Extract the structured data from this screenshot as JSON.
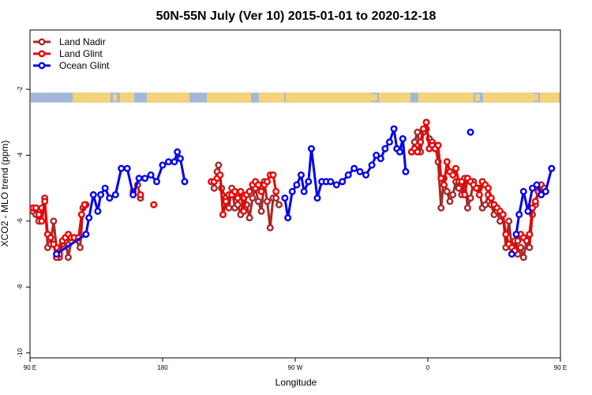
{
  "chart_data": {
    "type": "line",
    "title": "50N-55N July (Ver 10)   2015-01-01 to 2020-12-18",
    "xlabel": "Longitude",
    "ylabel": "XCO2 - MLO trend (ppm)",
    "xlim": [
      90,
      450
    ],
    "ylim": [
      -10.15,
      -0.2
    ],
    "x_ticks": [
      {
        "value": 90,
        "label": "90 E"
      },
      {
        "value": 180,
        "label": "180"
      },
      {
        "value": 270,
        "label": "90 W"
      },
      {
        "value": 360,
        "label": "0"
      },
      {
        "value": 450,
        "label": "90 E"
      },
      {
        "value": 540,
        "label": "180"
      }
    ],
    "y_ticks": [
      {
        "value": -2,
        "label": "-2"
      },
      {
        "value": -4,
        "label": "-4"
      },
      {
        "value": -6,
        "label": "-6"
      },
      {
        "value": -8,
        "label": "-8"
      },
      {
        "value": -10,
        "label": "-10"
      }
    ],
    "grid": false,
    "legend_position": "top-left",
    "map_strip": {
      "y_top": -2.1,
      "y_bottom": -2.4,
      "ocean_color": "#a3b8d9",
      "land_color": "#f5d37a"
    },
    "series": [
      {
        "name": "Land Nadir",
        "color": "#a52a2a",
        "segments": [
          [
            [
              92,
              -5.7
            ],
            [
              94,
              -5.8
            ],
            [
              96,
              -6.0
            ],
            [
              98,
              -5.6
            ],
            [
              100,
              -5.3
            ],
            [
              102,
              -6.8
            ],
            [
              104,
              -6.7
            ],
            [
              106,
              -6.0
            ],
            [
              108,
              -6.8
            ],
            [
              110,
              -7.1
            ],
            [
              112,
              -6.7
            ],
            [
              114,
              -6.6
            ],
            [
              116,
              -7.1
            ],
            [
              118,
              -6.6
            ],
            [
              120,
              -6.5
            ],
            [
              124,
              -6.8
            ],
            [
              126,
              -5.6
            ],
            [
              128,
              -5.5
            ]
          ],
          [
            [
              160,
              -5.1
            ],
            [
              163,
              -4.9
            ],
            [
              165,
              -5.3
            ]
          ],
          [
            [
              215,
              -5.0
            ],
            [
              217,
              -4.5
            ],
            [
              218,
              -4.3
            ],
            [
              220,
              -5.0
            ],
            [
              223,
              -5.3
            ],
            [
              225,
              -5.6
            ],
            [
              227,
              -5.0
            ],
            [
              229,
              -5.6
            ],
            [
              231,
              -5.5
            ],
            [
              233,
              -5.8
            ],
            [
              235,
              -5.3
            ],
            [
              237,
              -5.5
            ],
            [
              239,
              -5.9
            ],
            [
              241,
              -5.3
            ],
            [
              243,
              -5.0
            ],
            [
              245,
              -5.4
            ],
            [
              247,
              -5.7
            ],
            [
              249,
              -4.8
            ],
            [
              251,
              -5.4
            ],
            [
              253,
              -6.2
            ],
            [
              255,
              -5.3
            ],
            [
              257,
              -5.3
            ],
            [
              259,
              -5.5
            ]
          ],
          [
            [
              349,
              -3.9
            ],
            [
              351,
              -3.6
            ],
            [
              353,
              -3.3
            ],
            [
              355,
              -3.9
            ],
            [
              357,
              -3.3
            ],
            [
              359,
              -3.2
            ],
            [
              361,
              -3.5
            ],
            [
              363,
              -3.6
            ],
            [
              365,
              -3.7
            ],
            [
              367,
              -4.2
            ],
            [
              369,
              -5.6
            ],
            [
              371,
              -4.7
            ],
            [
              373,
              -5.1
            ],
            [
              375,
              -5.4
            ],
            [
              377,
              -5.2
            ],
            [
              379,
              -4.8
            ],
            [
              381,
              -5.0
            ],
            [
              383,
              -5.2
            ],
            [
              385,
              -4.7
            ],
            [
              387,
              -5.6
            ],
            [
              389,
              -5.3
            ],
            [
              391,
              -4.8
            ],
            [
              393,
              -5.0
            ],
            [
              395,
              -5.0
            ],
            [
              397,
              -5.6
            ],
            [
              399,
              -5.5
            ],
            [
              401,
              -5.2
            ],
            [
              403,
              -5.5
            ],
            [
              405,
              -5.8
            ],
            [
              407,
              -5.7
            ],
            [
              409,
              -6.0
            ],
            [
              411,
              -5.8
            ],
            [
              413,
              -6.8
            ],
            [
              415,
              -6.0
            ],
            [
              417,
              -6.8
            ],
            [
              419,
              -6.6
            ],
            [
              421,
              -7.0
            ],
            [
              423,
              -6.8
            ],
            [
              425,
              -7.1
            ],
            [
              427,
              -6.6
            ],
            [
              429,
              -6.8
            ],
            [
              431,
              -5.8
            ],
            [
              433,
              -5.5
            ],
            [
              435,
              -5.1
            ],
            [
              437,
              -4.9
            ],
            [
              439,
              -5.1
            ]
          ]
        ]
      },
      {
        "name": "Land Glint",
        "color": "#ee0000",
        "segments": [
          [
            [
              92,
              -5.6
            ],
            [
              94,
              -5.6
            ],
            [
              96,
              -5.8
            ],
            [
              98,
              -6.0
            ],
            [
              100,
              -5.4
            ],
            [
              102,
              -6.4
            ],
            [
              104,
              -6.5
            ],
            [
              106,
              -6.7
            ],
            [
              108,
              -7.1
            ],
            [
              110,
              -7.0
            ],
            [
              112,
              -6.6
            ],
            [
              114,
              -6.5
            ],
            [
              116,
              -6.4
            ],
            [
              118,
              -6.5
            ],
            [
              120,
              -6.5
            ],
            [
              123,
              -6.5
            ],
            [
              125,
              -5.8
            ],
            [
              127,
              -5.5
            ]
          ],
          [
            [
              165,
              -5.2
            ]
          ],
          [
            [
              174,
              -5.5
            ]
          ],
          [
            [
              213,
              -4.8
            ],
            [
              215,
              -4.8
            ],
            [
              217,
              -4.7
            ],
            [
              219,
              -4.6
            ],
            [
              221,
              -5.8
            ],
            [
              223,
              -5.4
            ],
            [
              225,
              -5.2
            ],
            [
              227,
              -5.2
            ],
            [
              229,
              -5.1
            ],
            [
              231,
              -5.3
            ],
            [
              233,
              -5.1
            ],
            [
              235,
              -5.7
            ],
            [
              237,
              -5.2
            ],
            [
              239,
              -5.1
            ],
            [
              241,
              -4.9
            ],
            [
              243,
              -4.8
            ],
            [
              245,
              -4.9
            ],
            [
              247,
              -5.1
            ],
            [
              249,
              -4.9
            ],
            [
              251,
              -4.8
            ],
            [
              253,
              -4.6
            ],
            [
              255,
              -4.6
            ],
            [
              257,
              -5.1
            ]
          ],
          [
            [
              349,
              -3.9
            ],
            [
              351,
              -3.8
            ],
            [
              353,
              -3.9
            ],
            [
              355,
              -3.6
            ],
            [
              357,
              -3.2
            ],
            [
              359,
              -3.0
            ],
            [
              361,
              -3.8
            ],
            [
              363,
              -3.7
            ],
            [
              365,
              -3.8
            ],
            [
              367,
              -3.7
            ],
            [
              369,
              -4.7
            ],
            [
              371,
              -4.9
            ],
            [
              373,
              -4.2
            ],
            [
              375,
              -4.5
            ],
            [
              377,
              -4.6
            ],
            [
              379,
              -4.4
            ],
            [
              381,
              -4.8
            ],
            [
              383,
              -4.8
            ],
            [
              385,
              -5.2
            ],
            [
              387,
              -4.7
            ],
            [
              389,
              -4.8
            ],
            [
              391,
              -4.9
            ],
            [
              393,
              -5.0
            ],
            [
              395,
              -5.2
            ],
            [
              397,
              -4.8
            ],
            [
              399,
              -4.9
            ],
            [
              401,
              -5.0
            ],
            [
              403,
              -5.3
            ],
            [
              405,
              -5.5
            ],
            [
              407,
              -5.6
            ],
            [
              409,
              -5.7
            ],
            [
              411,
              -5.8
            ],
            [
              413,
              -6.4
            ],
            [
              415,
              -6.7
            ],
            [
              417,
              -6.8
            ],
            [
              419,
              -6.9
            ],
            [
              421,
              -6.6
            ],
            [
              423,
              -6.4
            ],
            [
              425,
              -6.5
            ],
            [
              427,
              -6.6
            ],
            [
              429,
              -6.4
            ],
            [
              431,
              -5.6
            ],
            [
              433,
              -5.4
            ],
            [
              435,
              -5.1
            ],
            [
              437,
              -5.2
            ],
            [
              439,
              -5.0
            ]
          ]
        ]
      },
      {
        "name": "Ocean Glint",
        "color": "#0000ee",
        "segments": [
          [
            [
              108,
              -7.0
            ],
            [
              128,
              -6.4
            ],
            [
              130,
              -5.9
            ],
            [
              133,
              -5.2
            ],
            [
              136,
              -5.7
            ],
            [
              138,
              -5.2
            ],
            [
              141,
              -5.0
            ],
            [
              144,
              -5.3
            ],
            [
              148,
              -5.2
            ],
            [
              152,
              -4.4
            ],
            [
              156,
              -4.4
            ],
            [
              160,
              -5.2
            ],
            [
              164,
              -4.7
            ],
            [
              168,
              -4.7
            ],
            [
              172,
              -4.6
            ],
            [
              176,
              -4.8
            ],
            [
              180,
              -4.3
            ],
            [
              184,
              -4.2
            ],
            [
              188,
              -4.2
            ],
            [
              190,
              -3.9
            ],
            [
              192,
              -4.1
            ],
            [
              195,
              -4.8
            ]
          ],
          [
            [
              263,
              -5.3
            ],
            [
              265,
              -5.9
            ],
            [
              268,
              -5.1
            ],
            [
              271,
              -4.9
            ],
            [
              274,
              -4.6
            ],
            [
              276,
              -5.1
            ],
            [
              279,
              -4.8
            ],
            [
              281,
              -3.8
            ],
            [
              285,
              -5.3
            ],
            [
              288,
              -4.8
            ],
            [
              291,
              -4.8
            ],
            [
              294,
              -4.8
            ],
            [
              298,
              -4.9
            ],
            [
              302,
              -4.8
            ],
            [
              306,
              -4.6
            ],
            [
              310,
              -4.4
            ],
            [
              314,
              -4.5
            ],
            [
              318,
              -4.6
            ],
            [
              322,
              -4.3
            ],
            [
              325,
              -4.0
            ],
            [
              328,
              -4.1
            ],
            [
              331,
              -3.8
            ],
            [
              334,
              -3.6
            ],
            [
              337,
              -3.2
            ],
            [
              339,
              -3.8
            ],
            [
              341,
              -3.9
            ],
            [
              343,
              -3.5
            ],
            [
              345,
              -4.5
            ]
          ],
          [
            [
              389,
              -3.3
            ]
          ],
          [
            [
              417,
              -7.0
            ]
          ],
          [
            [
              420,
              -6.4
            ],
            [
              422,
              -5.8
            ],
            [
              425,
              -5.1
            ],
            [
              428,
              -5.7
            ],
            [
              431,
              -5.0
            ],
            [
              434,
              -4.9
            ],
            [
              437,
              -5.2
            ],
            [
              440,
              -5.1
            ],
            [
              444,
              -4.4
            ]
          ]
        ]
      }
    ]
  }
}
